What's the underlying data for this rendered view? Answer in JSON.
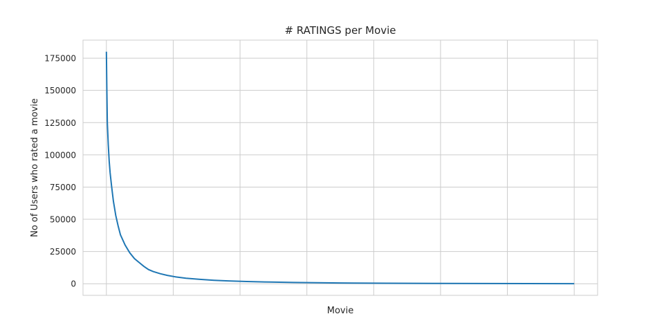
{
  "chart_data": {
    "type": "line",
    "title": "# RATINGS per Movie",
    "xlabel": "Movie",
    "ylabel": "No of Users who rated a movie",
    "x_tick_labels": [],
    "ylim": [
      -9000,
      189000
    ],
    "xlim": [
      -0.05,
      1.05
    ],
    "yticks": [
      0,
      25000,
      50000,
      75000,
      100000,
      125000,
      150000,
      175000
    ],
    "ytick_labels": [
      "0",
      "25000",
      "50000",
      "75000",
      "100000",
      "125000",
      "150000",
      "175000"
    ],
    "grid": true,
    "style": "whitegrid",
    "line_color": "#1f77b4",
    "series": [
      {
        "x": [
          0.0,
          0.001,
          0.002,
          0.004,
          0.006,
          0.008,
          0.011,
          0.015,
          0.02,
          0.025,
          0.03,
          0.04,
          0.05,
          0.06,
          0.07,
          0.08,
          0.09,
          0.1,
          0.115,
          0.13,
          0.15,
          0.17,
          0.2,
          0.23,
          0.26,
          0.3,
          0.35,
          0.4,
          0.45,
          0.5,
          0.6,
          0.7,
          0.8,
          0.9,
          1.0
        ],
        "y": [
          180000,
          150000,
          125000,
          108000,
          95000,
          86000,
          76000,
          64000,
          53000,
          45000,
          38000,
          30000,
          24000,
          19500,
          16500,
          13500,
          11000,
          9500,
          7800,
          6500,
          5200,
          4300,
          3400,
          2700,
          2200,
          1750,
          1300,
          1000,
          800,
          600,
          400,
          280,
          180,
          110,
          60
        ]
      }
    ]
  }
}
